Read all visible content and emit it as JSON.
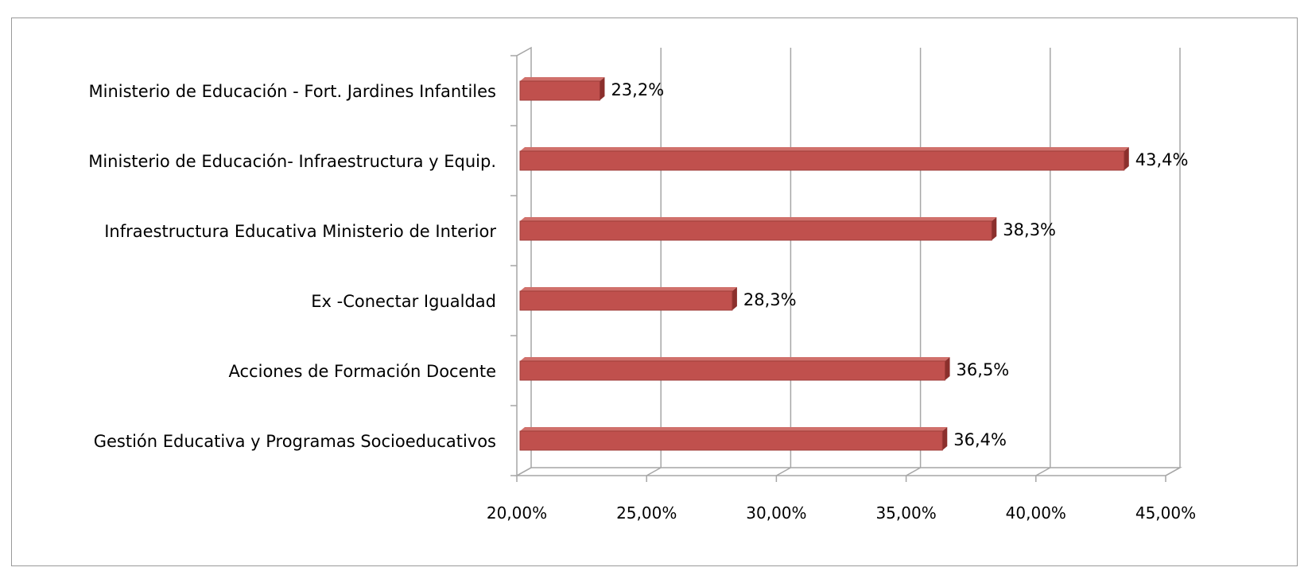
{
  "chart_data": {
    "type": "bar",
    "orientation": "horizontal",
    "style": "3d",
    "categories": [
      "Ministerio de Educación - Fort. Jardines Infantiles",
      "Ministerio de Educación- Infraestructura y Equip.",
      "Infraestructura Educativa Ministerio de Interior",
      "Ex -Conectar Igualdad",
      "Acciones de Formación Docente",
      "Gestión Educativa y Programas Socioeducativos"
    ],
    "values": [
      23.2,
      43.4,
      38.3,
      28.3,
      36.5,
      36.4
    ],
    "data_labels": [
      "23,2%",
      "43,4%",
      "38,3%",
      "28,3%",
      "36,5%",
      "36,4%"
    ],
    "x_ticks": [
      20,
      25,
      30,
      35,
      40,
      45
    ],
    "x_tick_labels": [
      "20,00%",
      "25,00%",
      "30,00%",
      "35,00%",
      "40,00%",
      "45,00%"
    ],
    "xlim": [
      20,
      45
    ],
    "grid": true,
    "legend": "none",
    "colors": {
      "bar": "#c0504d",
      "bar_top": "#d0706b",
      "bar_side": "#8b2f2c",
      "grid": "#a6a6a6"
    }
  }
}
